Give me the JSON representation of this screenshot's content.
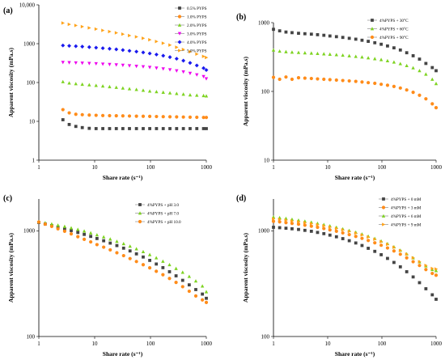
{
  "chart_data": [
    {
      "type": "scatter",
      "panel_label": "(a)",
      "xlabel": "Share rate (s⁻¹)",
      "ylabel": "Apparent viscosity (mPa.s)",
      "x_scale": "log",
      "y_scale": "log",
      "xlim": [
        1,
        1000
      ],
      "ylim": [
        1,
        10000
      ],
      "x_ticks": [
        "1",
        "10",
        "100",
        "1000"
      ],
      "y_ticks": [
        "1",
        "10",
        "100",
        "1000",
        "10,000"
      ],
      "legend_position": "top-right",
      "x": [
        2.7,
        3.5,
        4.6,
        6,
        8,
        10.6,
        14,
        18.5,
        24.4,
        32,
        42,
        56,
        74,
        97,
        128,
        169,
        223,
        294,
        388,
        512,
        676,
        892,
        1000
      ],
      "series": [
        {
          "name": "0.5% PYPS",
          "color": "#444444",
          "marker": "square",
          "y": [
            11,
            8.3,
            7.4,
            6.9,
            6.6,
            6.5,
            6.5,
            6.5,
            6.5,
            6.5,
            6.5,
            6.5,
            6.5,
            6.5,
            6.5,
            6.5,
            6.5,
            6.5,
            6.5,
            6.5,
            6.5,
            6.5,
            6.5
          ]
        },
        {
          "name": "1.0% PYPS",
          "color": "#ff8c1a",
          "marker": "circle",
          "y": [
            20,
            16.5,
            15.2,
            14.8,
            14.5,
            14.3,
            14.1,
            14,
            13.9,
            13.8,
            13.7,
            13.6,
            13.5,
            13.4,
            13.3,
            13.2,
            13.1,
            13,
            12.9,
            12.8,
            12.7,
            12.6,
            12.6
          ]
        },
        {
          "name": "2.0% PYPS",
          "color": "#7ed321",
          "marker": "triangle-up",
          "y": [
            105,
            97,
            93,
            90,
            87,
            84,
            81,
            78,
            75,
            72,
            69,
            66,
            63,
            60,
            58,
            56,
            54,
            52,
            50,
            48,
            47,
            46,
            45
          ]
        },
        {
          "name": "3.0% PYPS",
          "color": "#ee00ee",
          "marker": "triangle-down",
          "y": [
            330,
            325,
            320,
            315,
            310,
            305,
            298,
            292,
            285,
            278,
            270,
            262,
            255,
            245,
            235,
            225,
            213,
            200,
            188,
            172,
            158,
            142,
            125
          ]
        },
        {
          "name": "4.0% PYPS",
          "color": "#1a1aee",
          "marker": "diamond",
          "y": [
            900,
            880,
            860,
            840,
            815,
            790,
            765,
            740,
            715,
            685,
            655,
            625,
            595,
            560,
            525,
            490,
            450,
            410,
            365,
            320,
            275,
            235,
            210
          ]
        },
        {
          "name": "5.0% PYPS",
          "color": "#ffa31a",
          "marker": "triangle-right",
          "y": [
            3400,
            3150,
            2950,
            2750,
            2550,
            2380,
            2200,
            2050,
            1900,
            1760,
            1620,
            1500,
            1380,
            1260,
            1140,
            1030,
            920,
            810,
            710,
            620,
            540,
            470,
            440
          ]
        }
      ]
    },
    {
      "type": "scatter",
      "panel_label": "(b)",
      "xlabel": "Share rate (s⁻¹)",
      "ylabel": "Apparent viscosity (mPa.s)",
      "x_scale": "log",
      "y_scale": "log",
      "xlim": [
        1,
        1000
      ],
      "ylim": [
        10,
        1000
      ],
      "x_ticks": [
        "1",
        "10",
        "100",
        "1000"
      ],
      "y_ticks": [
        "10",
        "100",
        "1000"
      ],
      "legend_position": "top-right",
      "x": [
        1,
        1.3,
        1.7,
        2.2,
        2.9,
        3.8,
        5,
        6.5,
        8.5,
        11,
        14.5,
        19,
        25,
        33,
        43,
        56,
        74,
        97,
        127,
        167,
        219,
        287,
        377,
        494,
        648,
        850,
        1000
      ],
      "series": [
        {
          "name": "4%PYPS + 30°C",
          "color": "#444444",
          "marker": "square",
          "y": [
            800,
            760,
            730,
            715,
            700,
            690,
            680,
            668,
            655,
            640,
            625,
            610,
            592,
            575,
            555,
            535,
            510,
            485,
            458,
            430,
            400,
            365,
            330,
            295,
            255,
            222,
            200
          ]
        },
        {
          "name": "4%PYPS + 60°C",
          "color": "#7ed321",
          "marker": "triangle-up",
          "y": [
            400,
            385,
            378,
            372,
            368,
            364,
            360,
            356,
            352,
            347,
            342,
            336,
            330,
            323,
            316,
            308,
            299,
            290,
            279,
            267,
            253,
            237,
            220,
            200,
            178,
            150,
            130
          ]
        },
        {
          "name": "4%PYPS + 90°C",
          "color": "#ff8c1a",
          "marker": "circle",
          "y": [
            160,
            150,
            162,
            150,
            158,
            156,
            154,
            152,
            150,
            148,
            146,
            144,
            142,
            140,
            137,
            134,
            131,
            127,
            123,
            118,
            112,
            105,
            97,
            88,
            78,
            66,
            58
          ]
        }
      ]
    },
    {
      "type": "scatter",
      "panel_label": "(c)",
      "xlabel": "Share rate (s⁻¹)",
      "ylabel": "Apparent viscosity (mPa.s)",
      "x_scale": "log",
      "y_scale": "log",
      "xlim": [
        1,
        1000
      ],
      "ylim": [
        100,
        2000
      ],
      "x_ticks": [
        "1",
        "10",
        "100",
        "1000"
      ],
      "y_ticks": [
        "100",
        "1000"
      ],
      "legend_position": "top-right",
      "x": [
        1,
        1.3,
        1.7,
        2.2,
        2.9,
        3.8,
        5,
        6.5,
        8.5,
        11,
        14.5,
        19,
        25,
        33,
        43,
        56,
        74,
        97,
        127,
        167,
        219,
        287,
        377,
        494,
        648,
        850,
        1000
      ],
      "series": [
        {
          "name": "4%PYPS + pH 3.0",
          "color": "#444444",
          "marker": "square",
          "y": [
            1200,
            1160,
            1120,
            1085,
            1045,
            1005,
            965,
            925,
            885,
            845,
            805,
            765,
            725,
            685,
            645,
            605,
            565,
            525,
            485,
            448,
            410,
            375,
            340,
            308,
            278,
            252,
            230
          ]
        },
        {
          "name": "4%PYPS + pH 7.0",
          "color": "#7ed321",
          "marker": "triangle-up",
          "y": [
            1220,
            1190,
            1160,
            1130,
            1100,
            1065,
            1030,
            995,
            955,
            915,
            875,
            835,
            795,
            755,
            715,
            675,
            635,
            595,
            555,
            515,
            478,
            440,
            405,
            370,
            335,
            300,
            265
          ]
        },
        {
          "name": "4%PYPS + pH 10.0",
          "color": "#ff8c1a",
          "marker": "circle",
          "y": [
            1210,
            1155,
            1100,
            1045,
            990,
            935,
            880,
            830,
            785,
            740,
            700,
            660,
            620,
            582,
            546,
            512,
            478,
            446,
            414,
            384,
            354,
            325,
            296,
            268,
            242,
            222,
            210
          ]
        }
      ]
    },
    {
      "type": "scatter",
      "panel_label": "(d)",
      "xlabel": "Share rate (s⁻¹)",
      "ylabel": "Apparent viscosity (mPa.s)",
      "x_scale": "log",
      "y_scale": "log",
      "xlim": [
        1,
        1000
      ],
      "ylim": [
        100,
        2000
      ],
      "x_ticks": [
        "1",
        "10",
        "100",
        "1000"
      ],
      "y_ticks": [
        "100",
        "1000"
      ],
      "legend_position": "top-right",
      "x": [
        1,
        1.3,
        1.7,
        2.2,
        2.9,
        3.8,
        5,
        6.5,
        8.5,
        11,
        14.5,
        19,
        25,
        33,
        43,
        56,
        74,
        97,
        127,
        167,
        219,
        287,
        377,
        494,
        648,
        850,
        1000
      ],
      "series": [
        {
          "name": "4%PYPS + 0 mM",
          "color": "#444444",
          "marker": "square",
          "y": [
            1080,
            1070,
            1058,
            1045,
            1030,
            1010,
            990,
            965,
            940,
            910,
            878,
            843,
            806,
            767,
            726,
            683,
            639,
            594,
            548,
            502,
            456,
            410,
            366,
            323,
            283,
            248,
            225
          ]
        },
        {
          "name": "4%PYPS + 3 mM",
          "color": "#ff8c1a",
          "marker": "circle",
          "y": [
            1230,
            1215,
            1195,
            1175,
            1155,
            1130,
            1105,
            1080,
            1050,
            1020,
            990,
            955,
            920,
            885,
            848,
            810,
            770,
            730,
            688,
            645,
            600,
            555,
            510,
            470,
            430,
            395,
            380
          ]
        },
        {
          "name": "4%PYPS + 6 mM",
          "color": "#7ed321",
          "marker": "triangle-up",
          "y": [
            1350,
            1330,
            1310,
            1285,
            1260,
            1232,
            1205,
            1175,
            1145,
            1112,
            1078,
            1042,
            1006,
            968,
            930,
            888,
            845,
            800,
            755,
            705,
            655,
            605,
            555,
            508,
            465,
            430,
            420
          ]
        },
        {
          "name": "4%PYPS + 9 mM",
          "color": "#ffa31a",
          "marker": "triangle-right",
          "y": [
            1300,
            1282,
            1262,
            1240,
            1218,
            1195,
            1170,
            1143,
            1115,
            1085,
            1053,
            1020,
            986,
            950,
            913,
            873,
            832,
            790,
            745,
            698,
            650,
            602,
            555,
            510,
            470,
            440,
            435
          ]
        }
      ]
    }
  ]
}
